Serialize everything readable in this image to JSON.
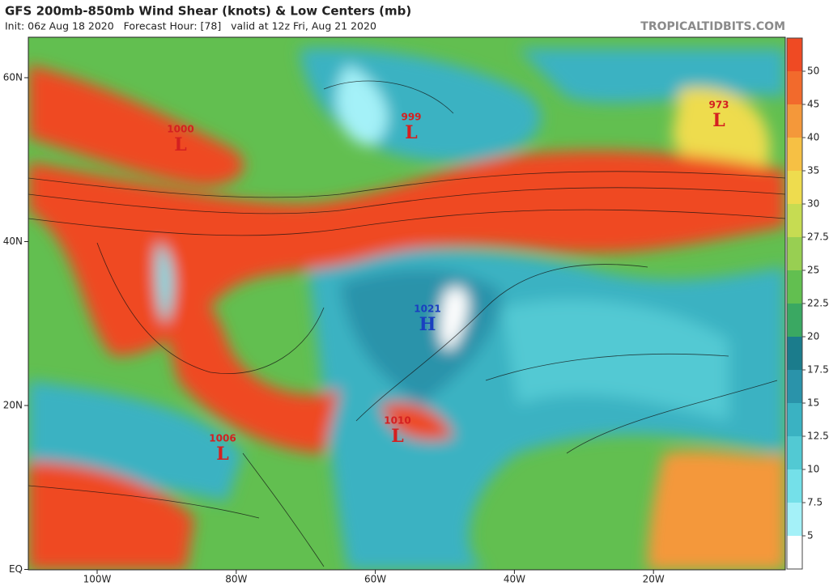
{
  "header": {
    "title": "GFS 200mb-850mb Wind Shear (knots) & Low Centers (mb)",
    "subtitle": "Init: 06z Aug 18 2020   Forecast Hour: [78]   valid at 12z Fri, Aug 21 2020",
    "site": "TROPICALTIDBITS.COM"
  },
  "axes": {
    "latitude_labels": [
      "60N",
      "40N",
      "20N",
      "EQ"
    ],
    "longitude_labels": [
      "100W",
      "80W",
      "60W",
      "40W",
      "20W"
    ]
  },
  "colorbar": {
    "labels": [
      50,
      45,
      40,
      35,
      30,
      27.5,
      25,
      22.5,
      20,
      17.5,
      15,
      12.5,
      10,
      7.5,
      5
    ],
    "colors": [
      "#ef4a23",
      "#f26a2c",
      "#f4983a",
      "#f6c044",
      "#eedc4e",
      "#c6dc52",
      "#98cf52",
      "#62bf50",
      "#3aa862",
      "#1b7c8c",
      "#2a93aa",
      "#3ab2c2",
      "#52c9d3",
      "#74e0e9",
      "#a4f1f8",
      "#ffffff"
    ]
  },
  "centers": [
    {
      "pressure": "1000",
      "symbol": "L"
    },
    {
      "pressure": "999",
      "symbol": "L"
    },
    {
      "pressure": "973",
      "symbol": "L"
    },
    {
      "pressure": "1021",
      "symbol": "H"
    },
    {
      "pressure": "1010",
      "symbol": "L"
    },
    {
      "pressure": "1006",
      "symbol": "L"
    }
  ]
}
